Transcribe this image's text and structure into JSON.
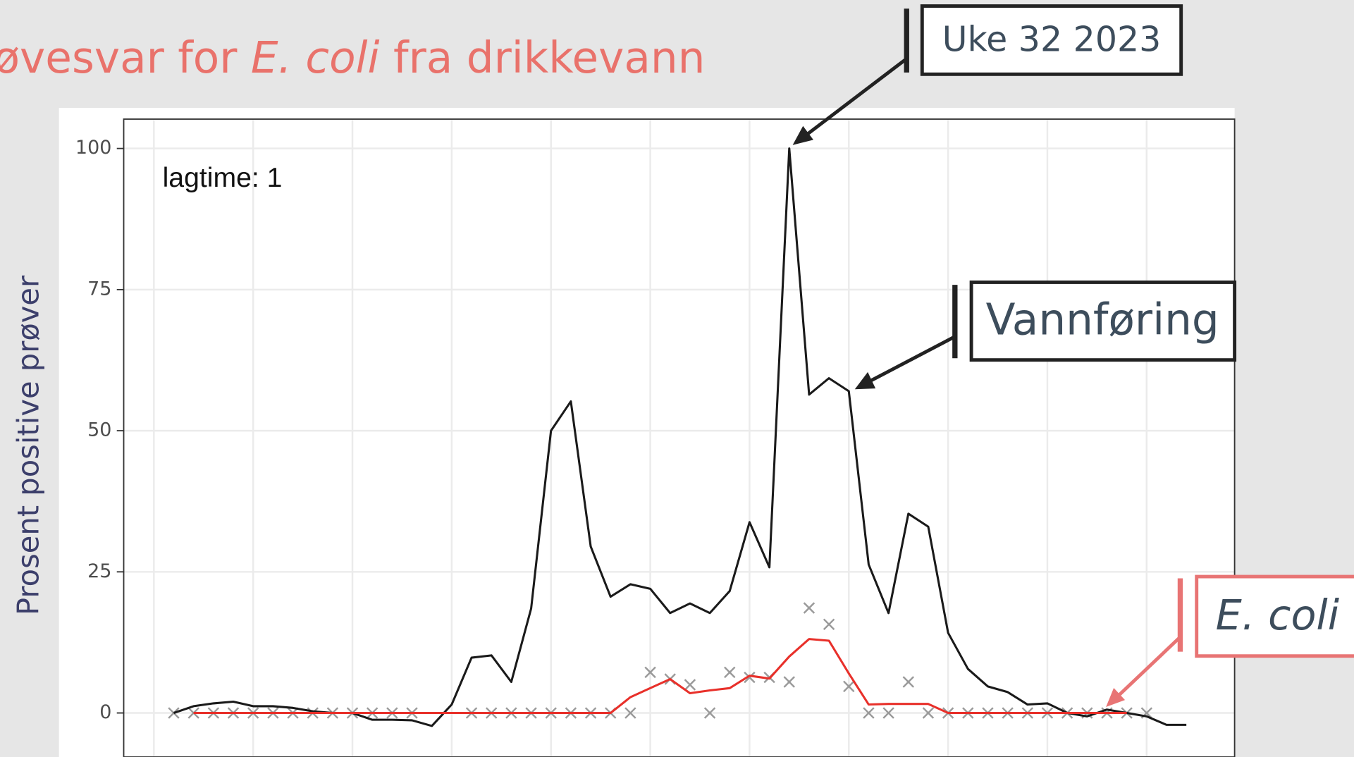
{
  "chart_data": {
    "type": "line",
    "subtitle": [
      "øvesvar for ",
      "E. coli",
      " fra drikkevann"
    ],
    "ylabel": "Prosent positive prøver",
    "annotations": [
      "lagtime: 1",
      "Uke 32 2023",
      "Vannføring",
      "E. coli"
    ],
    "x": [
      1,
      2,
      3,
      4,
      5,
      6,
      7,
      8,
      9,
      10,
      11,
      12,
      13,
      14,
      15,
      16,
      17,
      18,
      19,
      20,
      21,
      22,
      23,
      24,
      25,
      26,
      27,
      28,
      29,
      30,
      31,
      32,
      33,
      34,
      35,
      36,
      37,
      38,
      39,
      40,
      41,
      42,
      43,
      44,
      45,
      46,
      47,
      48,
      49,
      50,
      51,
      52
    ],
    "xlim": [
      -1.52,
      54.43
    ],
    "xticks": [
      0,
      5,
      10,
      15,
      20,
      25,
      30,
      35,
      40,
      45,
      50
    ],
    "ylim": [
      -7.8,
      105.2
    ],
    "yticks": [
      0,
      25,
      50,
      75,
      100
    ],
    "grid": true,
    "series": [
      {
        "color": "#1a1a1a",
        "values": [
          0,
          1.2,
          1.7,
          2,
          1.2,
          1.2,
          0.9,
          0.3,
          0,
          0,
          -1.2,
          -1.2,
          -1.3,
          -2.3,
          1.5,
          9.8,
          10.2,
          5.5,
          18.5,
          50,
          55.2,
          29.5,
          20.6,
          22.8,
          22,
          17.7,
          19.4,
          17.7,
          21.6,
          33.8,
          25.8,
          100,
          56.4,
          59.3,
          57,
          26.3,
          17.7,
          35.3,
          33,
          14.2,
          7.8,
          4.7,
          3.7,
          1.5,
          1.7,
          0,
          -0.6,
          0.6,
          0,
          -0.6,
          -2.1,
          -2.1
        ]
      },
      {
        "color": "#e8302a",
        "values": [
          null,
          0,
          0,
          0,
          0,
          0,
          0,
          0,
          0,
          0,
          0,
          0,
          0,
          0,
          0,
          0,
          0,
          0,
          0,
          0,
          0,
          0,
          0,
          2.8,
          4.4,
          6,
          3.5,
          4,
          4.4,
          6.6,
          6.1,
          10,
          13.1,
          12.8,
          7,
          1.5,
          1.6,
          1.6,
          1.6,
          0,
          0,
          0,
          0,
          0,
          0,
          0,
          0,
          0,
          0,
          null,
          null,
          null
        ]
      },
      {
        "color": "#9a9a9a",
        "marker": "x",
        "values": [
          0,
          0,
          0,
          0,
          0,
          0,
          0,
          0,
          0,
          0,
          0,
          0,
          0,
          null,
          null,
          0,
          0,
          0,
          0,
          0,
          0,
          0,
          0,
          0,
          7.2,
          6,
          5,
          0,
          7.2,
          6.3,
          6.3,
          5.5,
          18.6,
          15.7,
          4.7,
          0,
          0,
          5.5,
          0,
          0,
          0,
          0,
          0,
          0,
          0,
          0,
          0,
          0,
          0,
          0,
          null,
          null
        ]
      }
    ]
  }
}
